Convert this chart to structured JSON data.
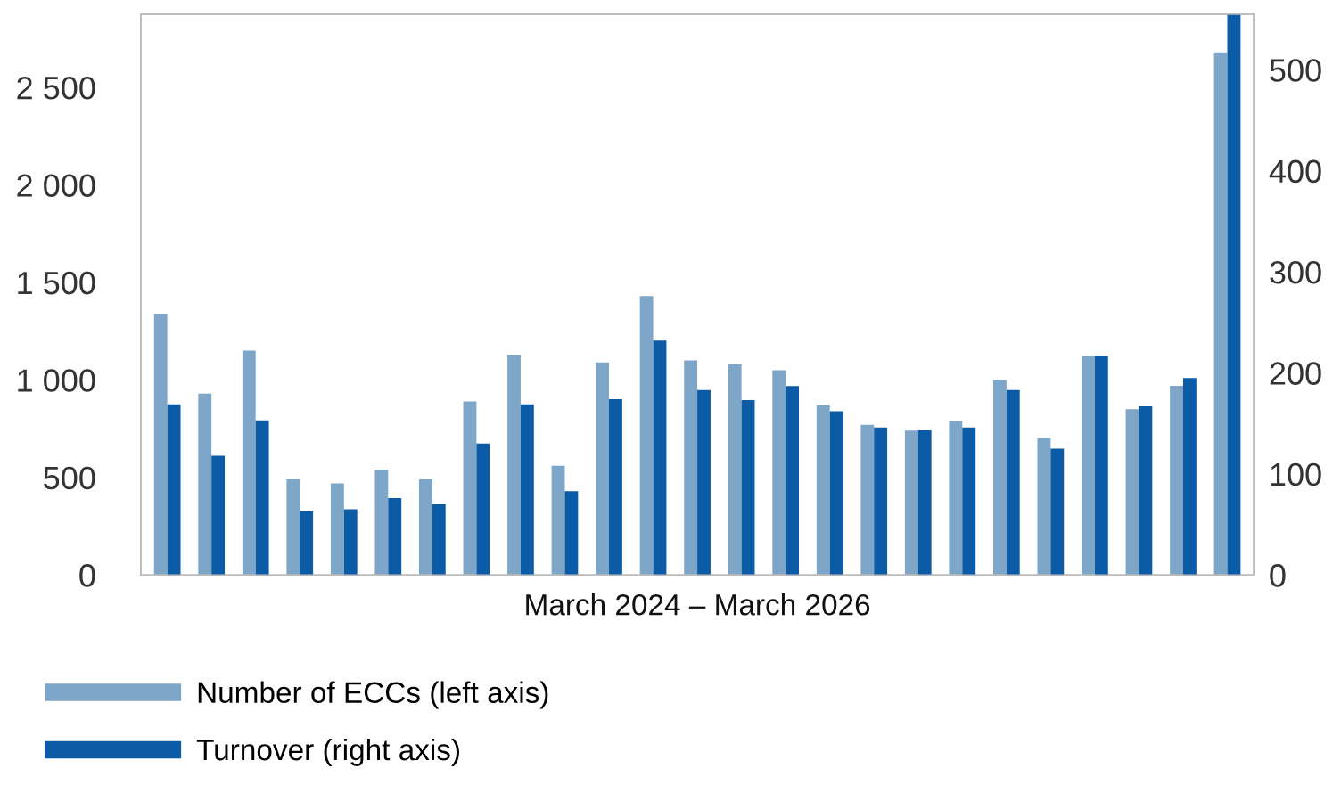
{
  "chart_data": {
    "type": "bar",
    "xlabel": "March 2024 – March 2026",
    "categories": [
      null,
      null,
      null,
      null,
      null,
      null,
      null,
      null,
      null,
      null,
      null,
      null,
      null,
      null,
      null,
      null,
      null,
      null,
      null,
      null,
      null,
      null,
      null,
      null,
      null
    ],
    "series": [
      {
        "name": "Number of ECCs (left axis)",
        "color": "#7ea6c8",
        "values": [
          1340,
          930,
          1150,
          490,
          470,
          540,
          490,
          890,
          1130,
          560,
          1090,
          1430,
          1100,
          1080,
          1050,
          870,
          770,
          740,
          790,
          1000,
          700,
          1120,
          850,
          970,
          2680
        ]
      },
      {
        "name": "Turnover (right axis)",
        "color": "#0b5ba6",
        "axis": "y2",
        "values": [
          169,
          118,
          153,
          63,
          65,
          76,
          70,
          130,
          169,
          83,
          174,
          232,
          183,
          173,
          187,
          162,
          146,
          143,
          146,
          183,
          125,
          217,
          167,
          195,
          555
        ]
      }
    ],
    "ylim": [
      0,
      2875
    ],
    "yticks": [
      0,
      {
        "value": 500,
        "label": "500"
      },
      {
        "value": 1000,
        "label": "1 000"
      },
      {
        "value": 1500,
        "label": "1 500"
      },
      {
        "value": 2000,
        "label": "2 000"
      },
      {
        "value": 2500,
        "label": "2 500"
      }
    ],
    "y2lim": [
      0,
      555
    ],
    "y2ticks": [
      0,
      100,
      200,
      300,
      400,
      500
    ],
    "grid": false,
    "legend": "bottom left"
  }
}
